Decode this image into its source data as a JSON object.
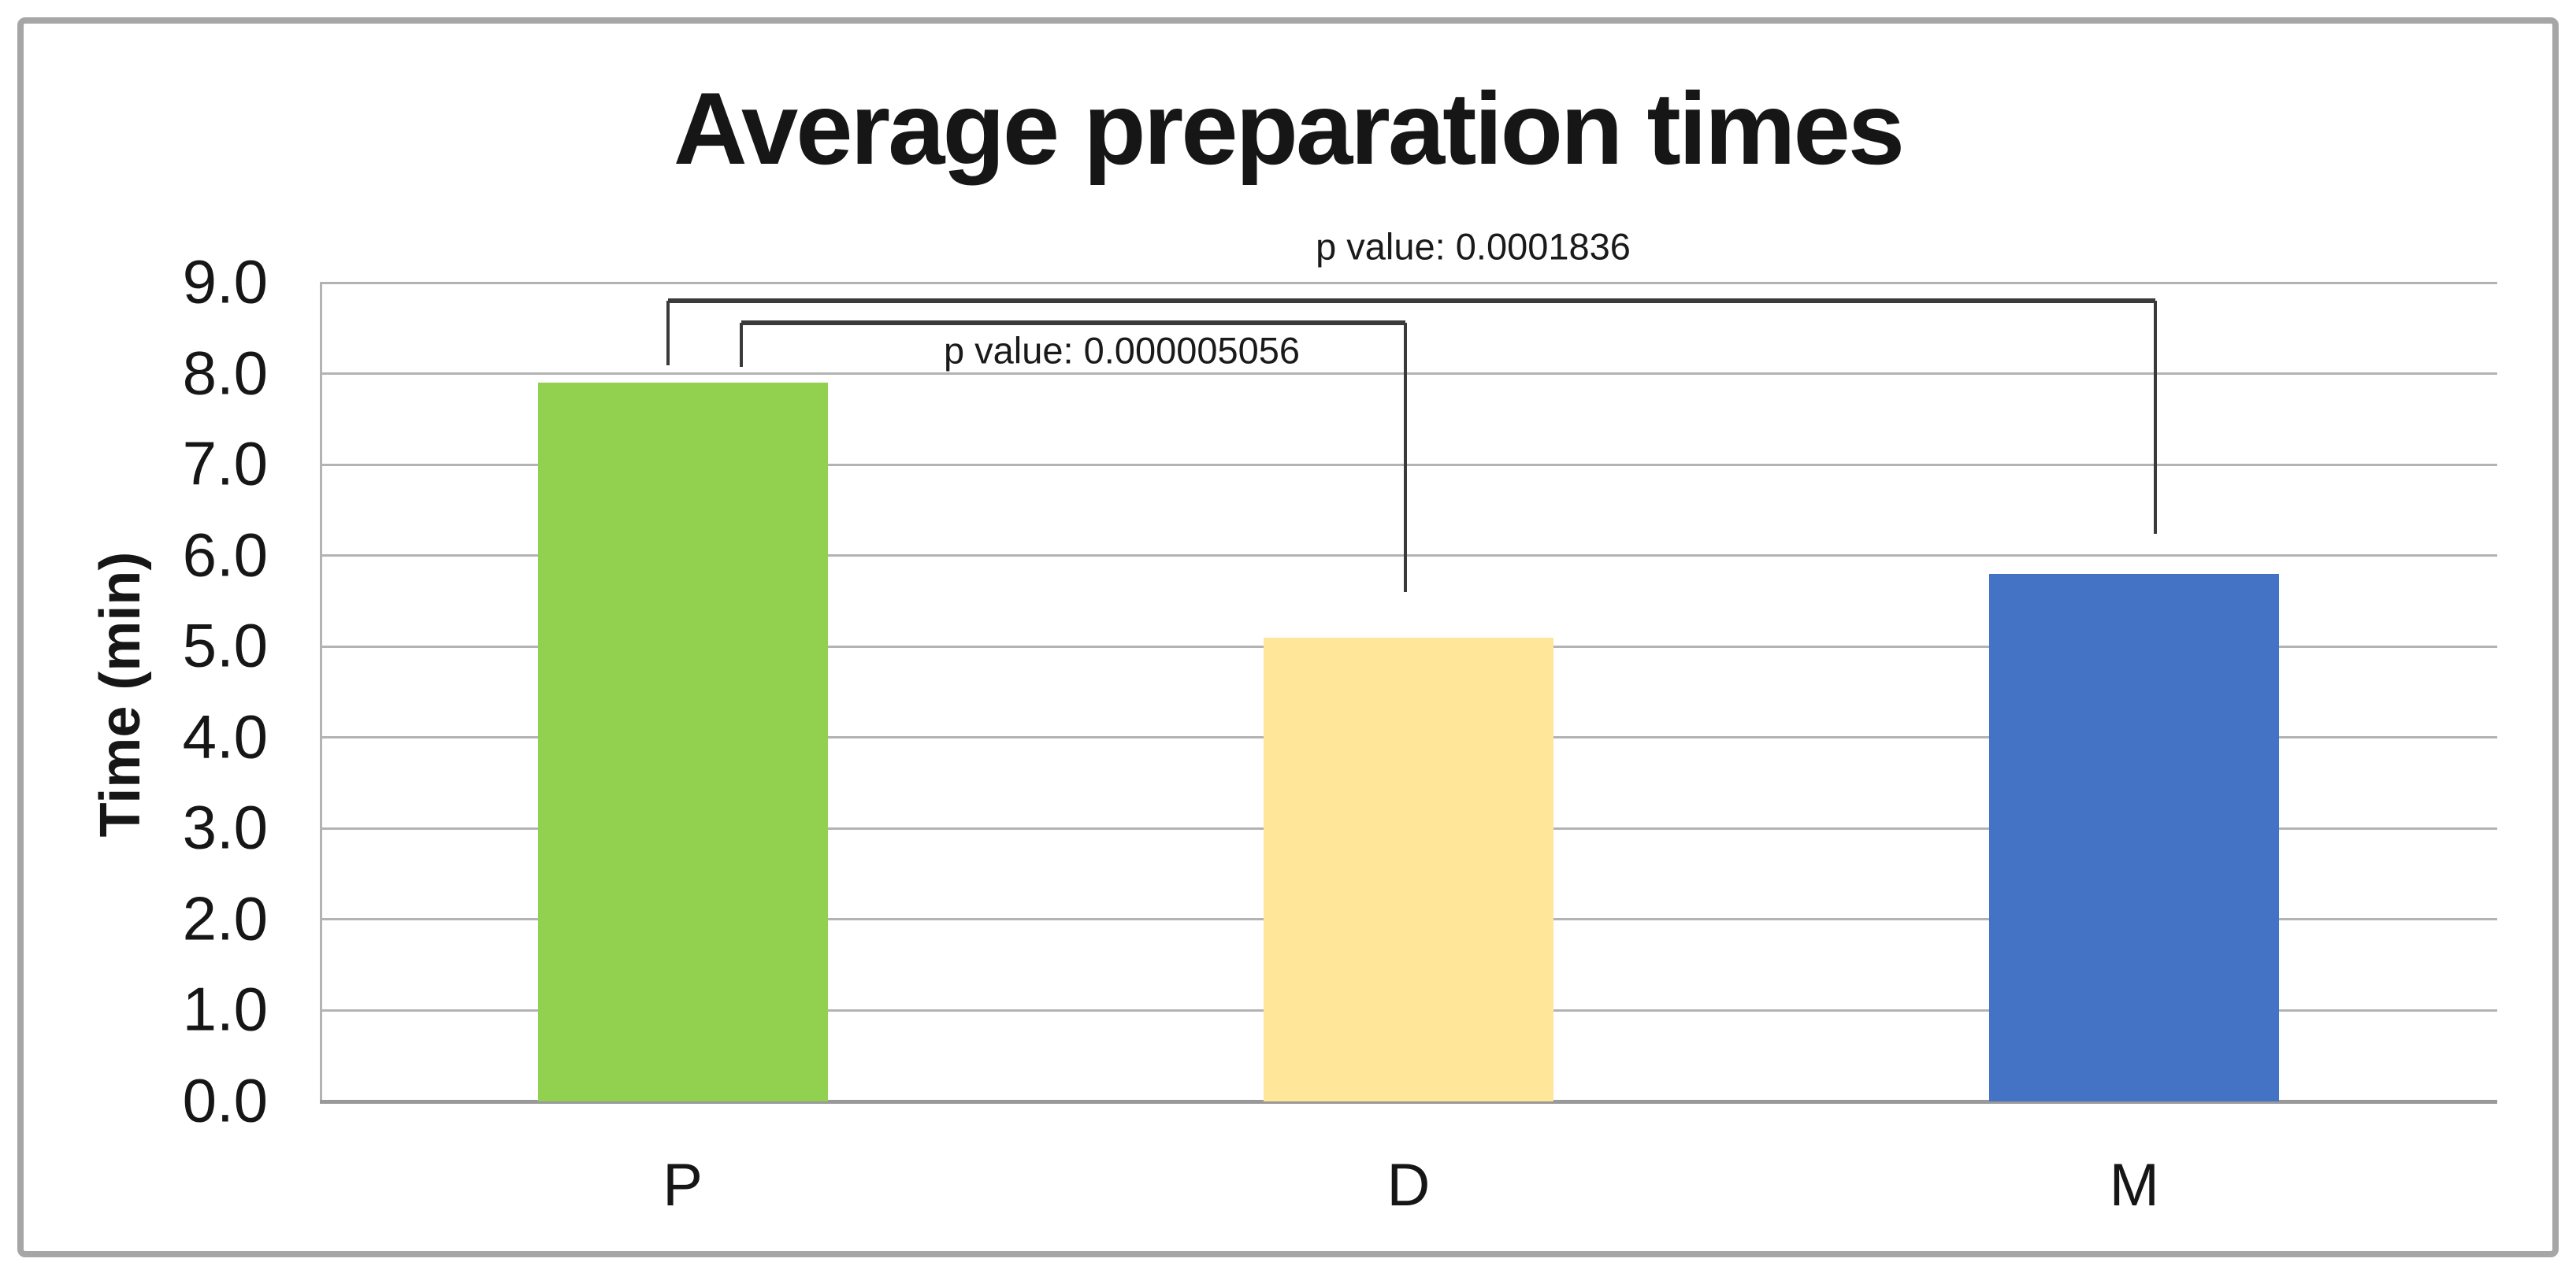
{
  "figure": {
    "background": "#ffffff",
    "border_color": "#a6a6a6"
  },
  "chart_data": {
    "type": "bar",
    "title": "Average preparation times",
    "categories": [
      "P",
      "D",
      "M"
    ],
    "values": [
      7.9,
      5.1,
      5.8
    ],
    "bar_colors": [
      "#92d050",
      "#ffe699",
      "#4472c4"
    ],
    "xlabel": "",
    "ylabel": "Time (min)",
    "ylim": [
      0,
      9
    ],
    "ytick_step": 1.0,
    "ytick_labels": [
      "0.0",
      "1.0",
      "2.0",
      "3.0",
      "4.0",
      "5.0",
      "6.0",
      "7.0",
      "8.0",
      "9.0"
    ],
    "grid": true,
    "legend": "none",
    "gridline_color": "#b3b3b3",
    "axis_line_color": "#999999",
    "bracket_color": "#3a3a3a",
    "annotations": [
      {
        "label": "p value: 0.0001836",
        "from": "P",
        "to": "M"
      },
      {
        "label": "p value: 0.000005056",
        "from": "P",
        "to": "D"
      }
    ]
  }
}
